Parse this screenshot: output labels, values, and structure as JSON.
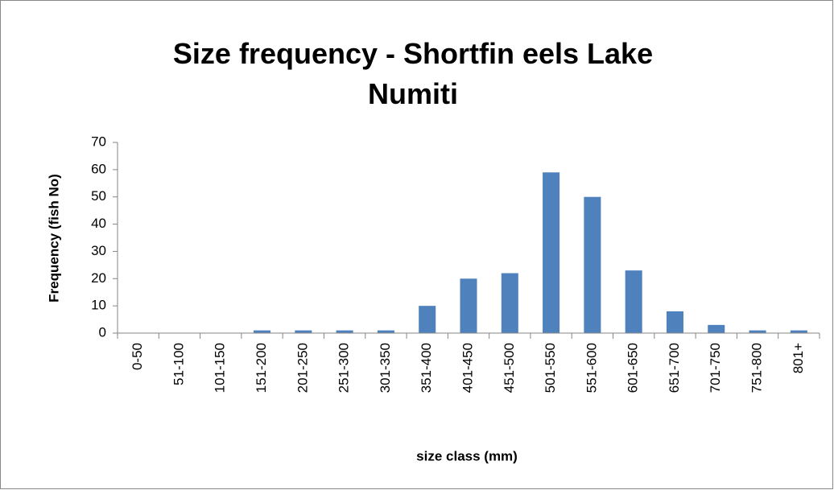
{
  "chart_data": {
    "type": "bar",
    "title": "Size frequency - Shortfin eels Lake Numiti",
    "x_label": "size class (mm)",
    "y_label": "Frequency (fish No)",
    "categories": [
      "0-50",
      "51-100",
      "101-150",
      "151-200",
      "201-250",
      "251-300",
      "301-350",
      "351-400",
      "401-450",
      "451-500",
      "501-550",
      "551-600",
      "601-650",
      "651-700",
      "701-750",
      "751-800",
      "801+"
    ],
    "values": [
      0,
      0,
      0,
      1,
      1,
      1,
      1,
      10,
      20,
      22,
      59,
      50,
      23,
      8,
      3,
      1,
      1
    ],
    "color": "#4f81bd",
    "ylim": [
      0,
      70
    ],
    "yticks": [
      0,
      10,
      20,
      30,
      40,
      50,
      60,
      70
    ],
    "grid": false
  }
}
